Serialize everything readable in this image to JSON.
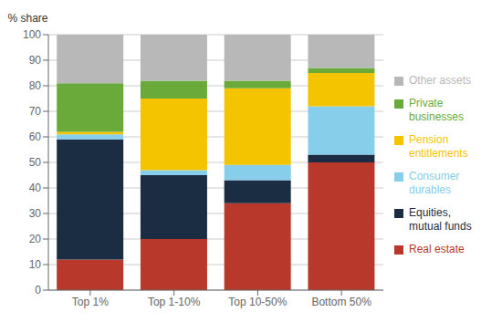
{
  "chart_data": {
    "type": "bar",
    "stacked": true,
    "ylabel": "% share",
    "categories": [
      "Top 1%",
      "Top 1-10%",
      "Top 10-50%",
      "Bottom 50%"
    ],
    "series": [
      {
        "name": "Real estate",
        "color": "#b8382c",
        "values": [
          12,
          20,
          34,
          50
        ]
      },
      {
        "name": "Equities, mutual funds",
        "color": "#1b2d42",
        "values": [
          47,
          25,
          9,
          3
        ]
      },
      {
        "name": "Consumer durables",
        "color": "#87ceeb",
        "values": [
          2,
          2,
          6,
          19
        ]
      },
      {
        "name": "Pension entitlements",
        "color": "#f5c400",
        "values": [
          1,
          28,
          30,
          13
        ]
      },
      {
        "name": "Private businesses",
        "color": "#6aaa3a",
        "values": [
          19,
          7,
          3,
          2
        ]
      },
      {
        "name": "Other assets",
        "color": "#b8b8b8",
        "values": [
          19,
          18,
          18,
          13
        ]
      }
    ],
    "ylim": [
      0,
      100
    ],
    "yticks": [
      0,
      10,
      20,
      30,
      40,
      50,
      60,
      70,
      80,
      90,
      100
    ],
    "grid": true
  }
}
